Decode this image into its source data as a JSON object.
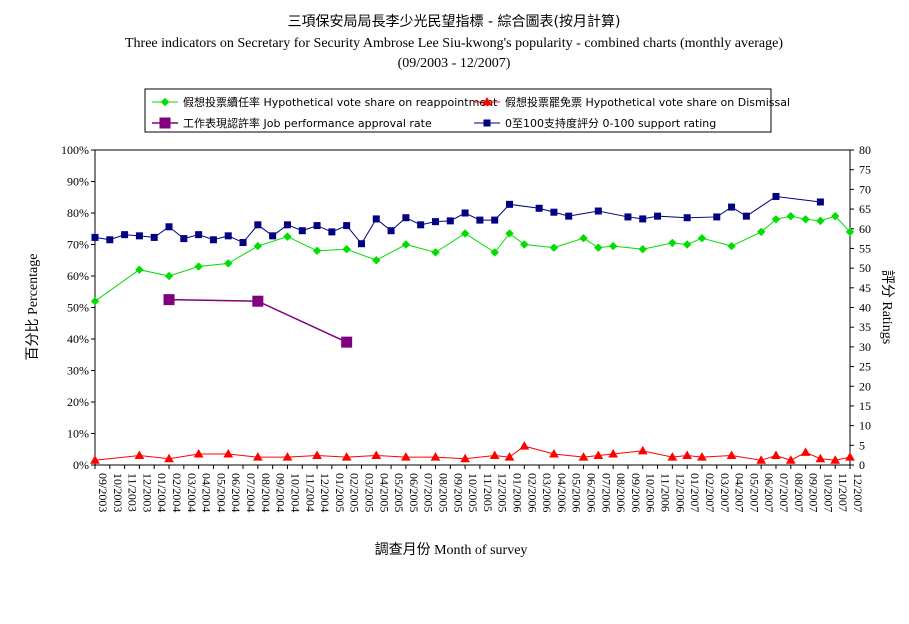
{
  "chart_data": {
    "type": "line",
    "title": "三項保安局局長李少光民望指標 - 綜合圖表(按月計算)",
    "subtitle": "Three indicators on Secretary for Security Ambrose Lee Siu-kwong's popularity - combined charts (monthly average)",
    "date_range": "(09/2003 - 12/2007)",
    "xlabel": "調查月份 Month of survey",
    "ylabel_left": "百分比 Percentage",
    "ylabel_right": "評分 Ratings",
    "ylim_left": [
      0,
      100
    ],
    "ylim_right": [
      0,
      80
    ],
    "yticks_left": [
      "0%",
      "10%",
      "20%",
      "30%",
      "40%",
      "50%",
      "60%",
      "70%",
      "80%",
      "90%",
      "100%"
    ],
    "yticks_right": [
      "0",
      "5",
      "10",
      "15",
      "20",
      "25",
      "30",
      "35",
      "40",
      "45",
      "50",
      "55",
      "60",
      "65",
      "70",
      "75",
      "80"
    ],
    "legend_position": "top",
    "grid": false,
    "categories": [
      "09/2003",
      "10/2003",
      "11/2003",
      "12/2003",
      "01/2004",
      "02/2004",
      "03/2004",
      "04/2004",
      "05/2004",
      "06/2004",
      "07/2004",
      "08/2004",
      "09/2004",
      "10/2004",
      "11/2004",
      "12/2004",
      "01/2005",
      "02/2005",
      "03/2005",
      "04/2005",
      "05/2005",
      "06/2005",
      "07/2005",
      "08/2005",
      "09/2005",
      "10/2005",
      "11/2005",
      "12/2005",
      "01/2006",
      "02/2006",
      "03/2006",
      "04/2006",
      "05/2006",
      "06/2006",
      "07/2006",
      "08/2006",
      "09/2006",
      "10/2006",
      "11/2006",
      "12/2006",
      "01/2007",
      "02/2007",
      "03/2007",
      "04/2007",
      "05/2007",
      "06/2007",
      "07/2007",
      "08/2007",
      "09/2007",
      "10/2007",
      "11/2007",
      "12/2007"
    ],
    "series": [
      {
        "name": "假想投票續任率 Hypothetical vote share on reappointment",
        "axis": "left",
        "color": "#00dd00",
        "marker": "diamond",
        "points": [
          [
            "09/2003",
            52
          ],
          [
            "12/2003",
            62
          ],
          [
            "02/2004",
            60
          ],
          [
            "04/2004",
            63
          ],
          [
            "06/2004",
            64
          ],
          [
            "08/2004",
            69.5
          ],
          [
            "10/2004",
            72.5
          ],
          [
            "12/2004",
            68
          ],
          [
            "02/2005",
            68.5
          ],
          [
            "04/2005",
            65
          ],
          [
            "06/2005",
            70
          ],
          [
            "08/2005",
            67.5
          ],
          [
            "10/2005",
            73.5
          ],
          [
            "12/2005",
            67.5
          ],
          [
            "01/2006",
            73.5
          ],
          [
            "02/2006",
            70
          ],
          [
            "04/2006",
            69
          ],
          [
            "06/2006",
            72
          ],
          [
            "07/2006",
            69
          ],
          [
            "08/2006",
            69.5
          ],
          [
            "10/2006",
            68.5
          ],
          [
            "12/2006",
            70.5
          ],
          [
            "01/2007",
            70
          ],
          [
            "02/2007",
            72
          ],
          [
            "04/2007",
            69.5
          ],
          [
            "06/2007",
            74
          ],
          [
            "07/2007",
            78
          ],
          [
            "08/2007",
            79
          ],
          [
            "09/2007",
            78
          ],
          [
            "10/2007",
            77.5
          ],
          [
            "11/2007",
            79
          ],
          [
            "12/2007",
            74
          ]
        ]
      },
      {
        "name": "假想投票罷免票 Hypothetical vote share on Dismissal",
        "axis": "left",
        "color": "#ff0000",
        "marker": "triangle",
        "points": [
          [
            "09/2003",
            1.5
          ],
          [
            "12/2003",
            3
          ],
          [
            "02/2004",
            2
          ],
          [
            "04/2004",
            3.5
          ],
          [
            "06/2004",
            3.5
          ],
          [
            "08/2004",
            2.5
          ],
          [
            "10/2004",
            2.5
          ],
          [
            "12/2004",
            3
          ],
          [
            "02/2005",
            2.5
          ],
          [
            "04/2005",
            3
          ],
          [
            "06/2005",
            2.5
          ],
          [
            "08/2005",
            2.5
          ],
          [
            "10/2005",
            2
          ],
          [
            "12/2005",
            3
          ],
          [
            "01/2006",
            2.5
          ],
          [
            "02/2006",
            6
          ],
          [
            "04/2006",
            3.5
          ],
          [
            "06/2006",
            2.5
          ],
          [
            "07/2006",
            3
          ],
          [
            "08/2006",
            3.5
          ],
          [
            "10/2006",
            4.5
          ],
          [
            "12/2006",
            2.5
          ],
          [
            "01/2007",
            3
          ],
          [
            "02/2007",
            2.5
          ],
          [
            "04/2007",
            3
          ],
          [
            "06/2007",
            1.5
          ],
          [
            "07/2007",
            3
          ],
          [
            "08/2007",
            1.5
          ],
          [
            "09/2007",
            4
          ],
          [
            "10/2007",
            2
          ],
          [
            "11/2007",
            1.5
          ],
          [
            "12/2007",
            2.5
          ]
        ]
      },
      {
        "name": "工作表現認許率 Job performance approval rate",
        "axis": "left",
        "color": "#800080",
        "marker": "square",
        "points": [
          [
            "02/2004",
            52.5
          ],
          [
            "08/2004",
            52
          ],
          [
            "02/2005",
            39
          ]
        ]
      },
      {
        "name": "0至100支持度評分 0-100 support rating",
        "axis": "right",
        "color": "#000080",
        "marker": "square-small",
        "points": [
          [
            "09/2003",
            57.8
          ],
          [
            "10/2003",
            57.2
          ],
          [
            "11/2003",
            58.5
          ],
          [
            "12/2003",
            58.2
          ],
          [
            "01/2004",
            57.8
          ],
          [
            "02/2004",
            60.5
          ],
          [
            "03/2004",
            57.5
          ],
          [
            "04/2004",
            58.5
          ],
          [
            "05/2004",
            57.2
          ],
          [
            "06/2004",
            58.2
          ],
          [
            "07/2004",
            56.5
          ],
          [
            "08/2004",
            61
          ],
          [
            "09/2004",
            58.2
          ],
          [
            "10/2004",
            61
          ],
          [
            "11/2004",
            59.5
          ],
          [
            "12/2004",
            60.8
          ],
          [
            "01/2005",
            59.2
          ],
          [
            "02/2005",
            60.8
          ],
          [
            "03/2005",
            56.2
          ],
          [
            "04/2005",
            62.5
          ],
          [
            "05/2005",
            59.5
          ],
          [
            "06/2005",
            62.8
          ],
          [
            "07/2005",
            61
          ],
          [
            "08/2005",
            61.8
          ],
          [
            "09/2005",
            62
          ],
          [
            "10/2005",
            64
          ],
          [
            "11/2005",
            62.2
          ],
          [
            "12/2005",
            62.2
          ],
          [
            "01/2006",
            66.2
          ],
          [
            "03/2006",
            65.2
          ],
          [
            "04/2006",
            64.2
          ],
          [
            "05/2006",
            63.2
          ],
          [
            "07/2006",
            64.5
          ],
          [
            "09/2006",
            63
          ],
          [
            "10/2006",
            62.5
          ],
          [
            "11/2006",
            63.2
          ],
          [
            "01/2007",
            62.8
          ],
          [
            "03/2007",
            63
          ],
          [
            "04/2007",
            65.5
          ],
          [
            "05/2007",
            63.2
          ],
          [
            "07/2007",
            68.2
          ],
          [
            "10/2007",
            66.8
          ]
        ]
      }
    ]
  }
}
